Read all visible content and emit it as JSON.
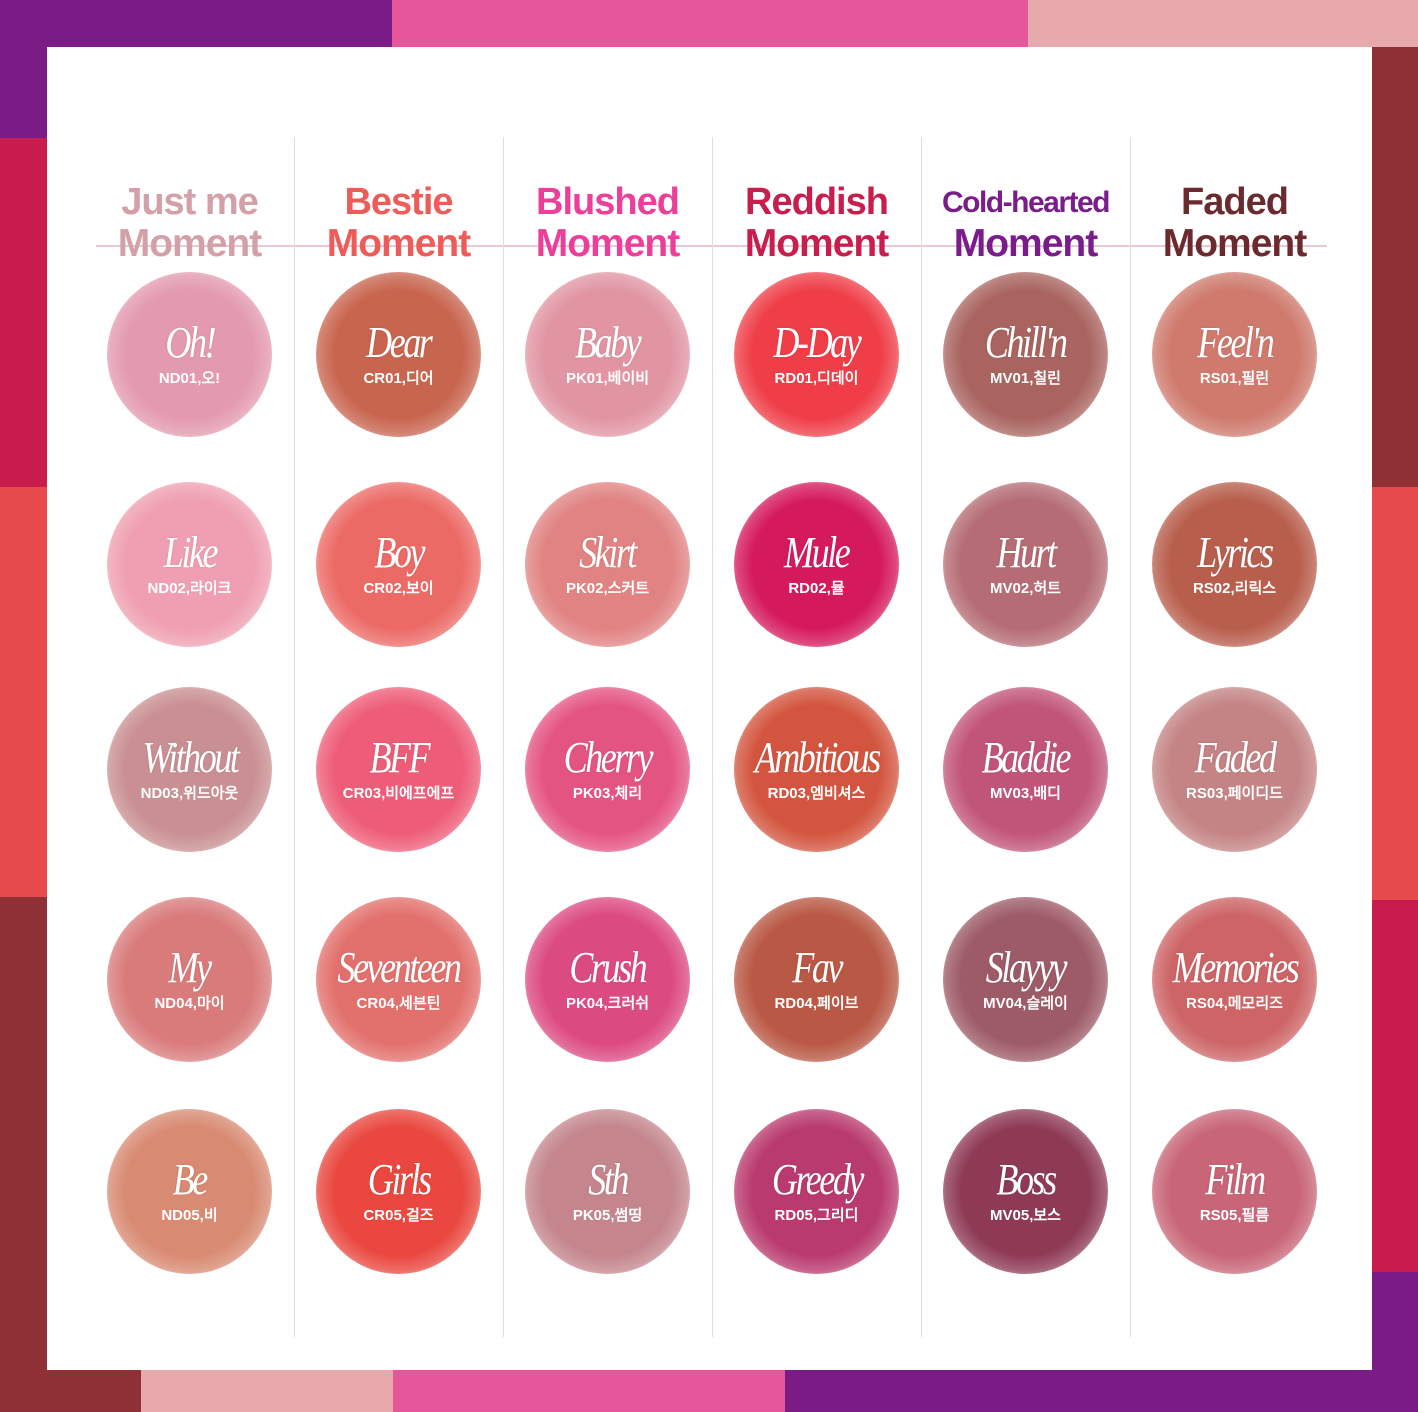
{
  "frame_colors": [
    "#7b1c86",
    "#e6569a",
    "#e8a9ad",
    "#c81d4c",
    "#e64a4a",
    "#8f2f36"
  ],
  "columns": [
    {
      "title1": "Just me",
      "title2": "Moment",
      "color": "#d4a0a8",
      "swatches": [
        {
          "name": "Oh!",
          "code": "ND01,오!",
          "color": "#e39aae"
        },
        {
          "name": "Like",
          "code": "ND02,라이크",
          "color": "#ef9fb1"
        },
        {
          "name": "Without",
          "code": "ND03,위드아웃",
          "color": "#c98f92"
        },
        {
          "name": "My",
          "code": "ND04,마이",
          "color": "#d97b7b"
        },
        {
          "name": "Be",
          "code": "ND05,비",
          "color": "#d88a72"
        }
      ]
    },
    {
      "title1": "Bestie",
      "title2": "Moment",
      "color": "#ee5c5a",
      "swatches": [
        {
          "name": "Dear",
          "code": "CR01,디어",
          "color": "#c8654f"
        },
        {
          "name": "Boy",
          "code": "CR02,보이",
          "color": "#ec6a66"
        },
        {
          "name": "BFF",
          "code": "CR03,비에프에프",
          "color": "#ee5d78"
        },
        {
          "name": "Seventeen",
          "code": "CR04,세븐틴",
          "color": "#e2706c"
        },
        {
          "name": "Girls",
          "code": "CR05,걸즈",
          "color": "#e9473f"
        }
      ]
    },
    {
      "title1": "Blushed",
      "title2": "Moment",
      "color": "#ec3f9a",
      "swatches": [
        {
          "name": "Baby",
          "code": "PK01,베이비",
          "color": "#e195a3"
        },
        {
          "name": "Skirt",
          "code": "PK02,스커트",
          "color": "#e08382"
        },
        {
          "name": "Cherry",
          "code": "PK03,체리",
          "color": "#e45482"
        },
        {
          "name": "Crush",
          "code": "PK04,크러쉬",
          "color": "#dc4a82"
        },
        {
          "name": "Sth",
          "code": "PK05,썸띵",
          "color": "#c4858d"
        }
      ]
    },
    {
      "title1": "Reddish",
      "title2": "Moment",
      "color": "#c81e4e",
      "swatches": [
        {
          "name": "D-Day",
          "code": "RD01,디데이",
          "color": "#ef3e48"
        },
        {
          "name": "Mule",
          "code": "RD02,뮬",
          "color": "#d51a5c"
        },
        {
          "name": "Ambitious",
          "code": "RD03,엠비셔스",
          "color": "#d3553f"
        },
        {
          "name": "Fav",
          "code": "RD04,페이브",
          "color": "#b95844"
        },
        {
          "name": "Greedy",
          "code": "RD05,그리디",
          "color": "#b93a6e"
        }
      ]
    },
    {
      "title1": "Cold-hearted",
      "title2": "Moment",
      "color": "#7a1c8a",
      "swatches": [
        {
          "name": "Chill'n",
          "code": "MV01,칠린",
          "color": "#a96460"
        },
        {
          "name": "Hurt",
          "code": "MV02,허트",
          "color": "#b56c74"
        },
        {
          "name": "Baddie",
          "code": "MV03,배디",
          "color": "#c15579"
        },
        {
          "name": "Slayyy",
          "code": "MV04,슬레이",
          "color": "#9d5a67"
        },
        {
          "name": "Boss",
          "code": "MV05,보스",
          "color": "#8e3a55"
        }
      ]
    },
    {
      "title1": "Faded",
      "title2": "Moment",
      "color": "#6b2a2e",
      "swatches": [
        {
          "name": "Feel'n",
          "code": "RS01,필린",
          "color": "#cf7a6d"
        },
        {
          "name": "Lyrics",
          "code": "RS02,리릭스",
          "color": "#b85e4c"
        },
        {
          "name": "Faded",
          "code": "RS03,페이디드",
          "color": "#c48384"
        },
        {
          "name": "Memories",
          "code": "RS04,메모리즈",
          "color": "#cd6466"
        },
        {
          "name": "Film",
          "code": "RS05,필름",
          "color": "#c86577"
        }
      ]
    }
  ]
}
